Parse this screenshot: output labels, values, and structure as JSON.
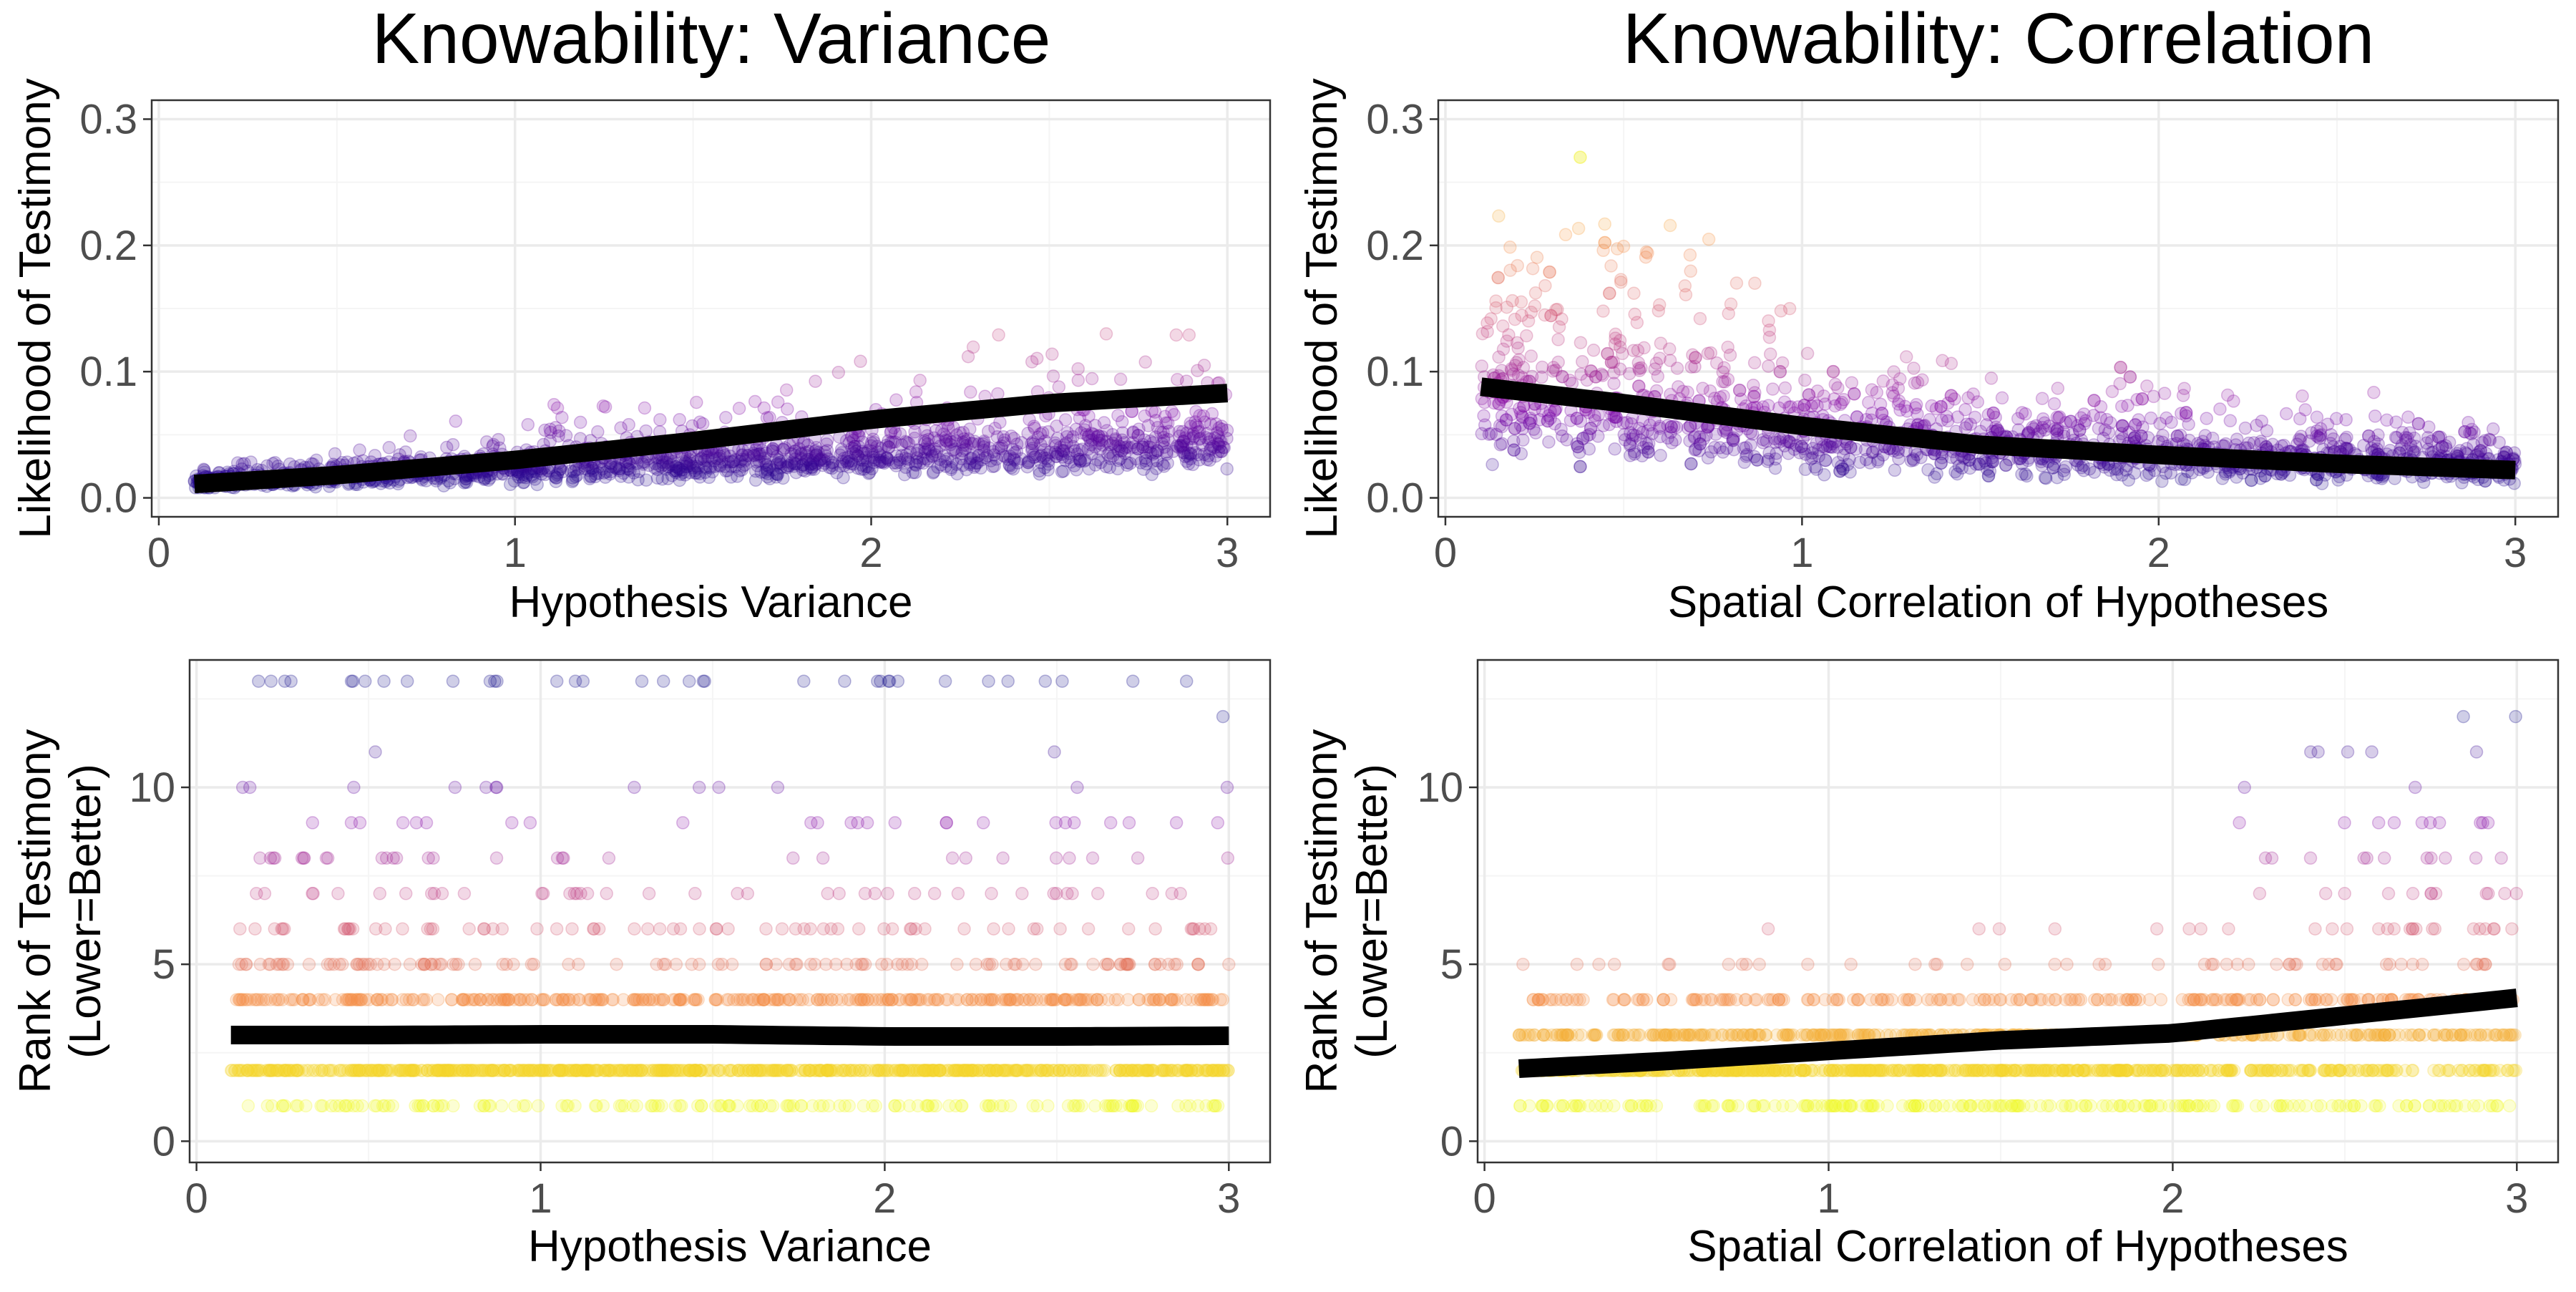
{
  "colors": {
    "panel_border": "#333333",
    "grid_major": "#ebebeb",
    "grid_minor": "#f5f5f5",
    "tick_text": "#4d4d4d",
    "smooth_line": "#000000",
    "point_scale": [
      "#0d0887",
      "#7e03a8",
      "#cc4778",
      "#f89540",
      "#f0f921"
    ]
  },
  "chart_data": [
    {
      "id": "top-left",
      "type": "scatter",
      "title": "Knowability: Variance",
      "xlabel": "Hypothesis Variance",
      "ylabel": [
        "Likelihood of Testimony"
      ],
      "xlim": [
        -0.02,
        3.12
      ],
      "ylim": [
        -0.015,
        0.315
      ],
      "xticks": [
        0,
        1,
        2,
        3
      ],
      "xtick_labels": [
        "0",
        "1",
        "2",
        "3"
      ],
      "yticks": [
        0.0,
        0.1,
        0.2,
        0.3
      ],
      "ytick_labels": [
        "0.0",
        "0.1",
        "0.2",
        "0.3"
      ],
      "grid": true,
      "point_alpha": 0.2,
      "point_count": 1600,
      "point_color": "mapped to y value (purple = low, yellow = high)",
      "smooth_line": {
        "x": [
          0.1,
          0.5,
          1.0,
          1.5,
          2.0,
          2.5,
          3.0
        ],
        "y": [
          0.011,
          0.018,
          0.03,
          0.045,
          0.062,
          0.075,
          0.083
        ]
      }
    },
    {
      "id": "top-right",
      "type": "scatter",
      "title": "Knowability: Correlation",
      "xlabel": "Spatial Correlation of Hypotheses",
      "ylabel": [
        "Likelihood of Testimony"
      ],
      "xlim": [
        -0.02,
        3.12
      ],
      "ylim": [
        -0.015,
        0.315
      ],
      "xticks": [
        0,
        1,
        2,
        3
      ],
      "xtick_labels": [
        "0",
        "1",
        "2",
        "3"
      ],
      "yticks": [
        0.0,
        0.1,
        0.2,
        0.3
      ],
      "ytick_labels": [
        "0.0",
        "0.1",
        "0.2",
        "0.3"
      ],
      "grid": true,
      "point_alpha": 0.2,
      "point_count": 1600,
      "point_color": "mapped to y value (purple = low, yellow = high)",
      "smooth_line": {
        "x": [
          0.1,
          0.5,
          1.0,
          1.5,
          2.0,
          2.5,
          3.0
        ],
        "y": [
          0.088,
          0.075,
          0.057,
          0.042,
          0.034,
          0.027,
          0.022
        ]
      }
    },
    {
      "id": "bottom-left",
      "type": "scatter",
      "title": "",
      "xlabel": "Hypothesis Variance",
      "ylabel": [
        "Rank of Testimony",
        "(Lower=Better)"
      ],
      "xlim": [
        -0.02,
        3.12
      ],
      "ylim": [
        -0.6,
        13.6
      ],
      "xticks": [
        0,
        1,
        2,
        3
      ],
      "xtick_labels": [
        "0",
        "1",
        "2",
        "3"
      ],
      "yticks": [
        0,
        5,
        10
      ],
      "ytick_labels": [
        "0",
        "5",
        "10"
      ],
      "grid": true,
      "point_alpha": 0.2,
      "point_count": 1600,
      "point_color": "mapped to rank (yellow = 1, purple = high rank)",
      "smooth_line": {
        "x": [
          0.1,
          0.5,
          1.0,
          1.5,
          2.0,
          2.5,
          3.0
        ],
        "y": [
          3.0,
          3.0,
          3.02,
          3.02,
          2.96,
          2.96,
          2.98
        ]
      }
    },
    {
      "id": "bottom-right",
      "type": "scatter",
      "title": "",
      "xlabel": "Spatial Correlation of Hypotheses",
      "ylabel": [
        "Rank of Testimony",
        "(Lower=Better)"
      ],
      "xlim": [
        -0.02,
        3.12
      ],
      "ylim": [
        -0.6,
        13.6
      ],
      "xticks": [
        0,
        1,
        2,
        3
      ],
      "xtick_labels": [
        "0",
        "1",
        "2",
        "3"
      ],
      "yticks": [
        0,
        5,
        10
      ],
      "ytick_labels": [
        "0",
        "5",
        "10"
      ],
      "grid": true,
      "point_alpha": 0.2,
      "point_count": 1600,
      "point_color": "mapped to rank (yellow = 1, purple = high rank)",
      "smooth_line": {
        "x": [
          0.1,
          0.5,
          1.0,
          1.5,
          2.0,
          2.5,
          3.0
        ],
        "y": [
          2.05,
          2.25,
          2.55,
          2.85,
          3.05,
          3.55,
          4.05
        ]
      }
    }
  ]
}
